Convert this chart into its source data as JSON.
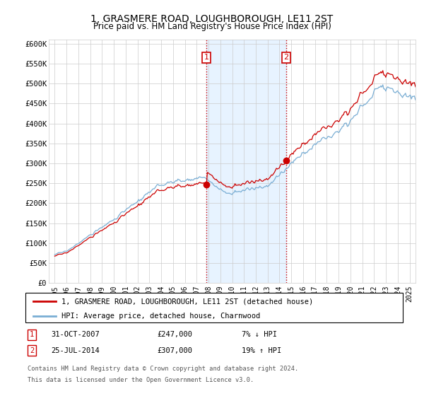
{
  "title": "1, GRASMERE ROAD, LOUGHBOROUGH, LE11 2ST",
  "subtitle": "Price paid vs. HM Land Registry's House Price Index (HPI)",
  "ylabel_ticks": [
    "£0",
    "£50K",
    "£100K",
    "£150K",
    "£200K",
    "£250K",
    "£300K",
    "£350K",
    "£400K",
    "£450K",
    "£500K",
    "£550K",
    "£600K"
  ],
  "ytick_vals": [
    0,
    50000,
    100000,
    150000,
    200000,
    250000,
    300000,
    350000,
    400000,
    450000,
    500000,
    550000,
    600000
  ],
  "ylim": [
    0,
    610000
  ],
  "hpi_color": "#7aaed4",
  "price_color": "#cc0000",
  "sale1_x": 2007.83,
  "sale1_y": 247000,
  "sale2_x": 2014.56,
  "sale2_y": 307000,
  "sale1_date": "31-OCT-2007",
  "sale1_price": "£247,000",
  "sale1_hpi": "7% ↓ HPI",
  "sale2_date": "25-JUL-2014",
  "sale2_price": "£307,000",
  "sale2_hpi": "19% ↑ HPI",
  "legend_line1": "1, GRASMERE ROAD, LOUGHBOROUGH, LE11 2ST (detached house)",
  "legend_line2": "HPI: Average price, detached house, Charnwood",
  "footnote1": "Contains HM Land Registry data © Crown copyright and database right 2024.",
  "footnote2": "This data is licensed under the Open Government Licence v3.0.",
  "xmin": 1994.5,
  "xmax": 2025.5,
  "shade_color": "#ddeeff",
  "seed": 17
}
